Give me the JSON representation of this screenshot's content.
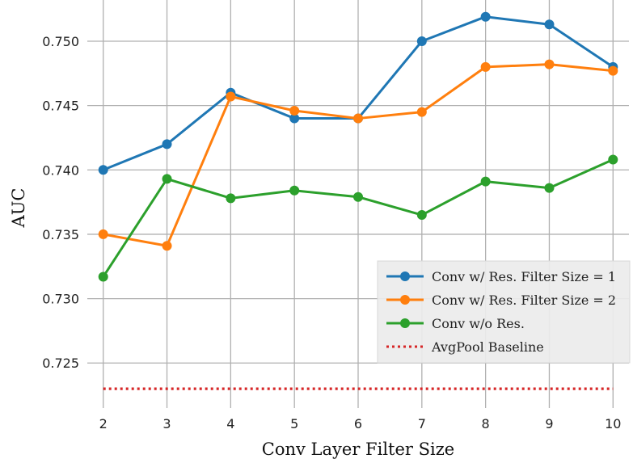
{
  "chart_data": {
    "type": "line",
    "xlabel": "Conv Layer Filter Size",
    "ylabel": "AUC",
    "x": [
      2,
      3,
      4,
      5,
      6,
      7,
      8,
      9,
      10
    ],
    "xlim": [
      1.75,
      10.25
    ],
    "ylim": [
      0.7215,
      0.7532
    ],
    "x_ticks": [
      "2",
      "3",
      "4",
      "5",
      "6",
      "7",
      "8",
      "9",
      "10"
    ],
    "y_ticks": [
      0.725,
      0.73,
      0.735,
      0.74,
      0.745,
      0.75
    ],
    "y_tick_labels": [
      "0.725",
      "0.730",
      "0.735",
      "0.740",
      "0.745",
      "0.750"
    ],
    "grid": true,
    "legend_position": "lower-right",
    "series": [
      {
        "name": "Conv w/ Res. Filter Size = 1",
        "color": "#1f77b4",
        "style": "solid",
        "markers": true,
        "values": [
          0.74,
          0.742,
          0.746,
          0.744,
          0.744,
          0.75,
          0.7519,
          0.7513,
          0.748
        ]
      },
      {
        "name": "Conv w/ Res. Filter Size = 2",
        "color": "#ff7f0e",
        "style": "solid",
        "markers": true,
        "values": [
          0.735,
          0.7341,
          0.7457,
          0.7446,
          0.744,
          0.7445,
          0.748,
          0.7482,
          0.7477
        ]
      },
      {
        "name": "Conv w/o Res.",
        "color": "#2ca02c",
        "style": "solid",
        "markers": true,
        "values": [
          0.7317,
          0.7393,
          0.7378,
          0.7384,
          0.7379,
          0.7365,
          0.7391,
          0.7386,
          0.7408
        ]
      },
      {
        "name": "AvgPool Baseline",
        "color": "#d62728",
        "style": "dotted",
        "markers": false,
        "values": [
          0.723,
          0.723,
          0.723,
          0.723,
          0.723,
          0.723,
          0.723,
          0.723,
          0.723
        ]
      }
    ]
  }
}
